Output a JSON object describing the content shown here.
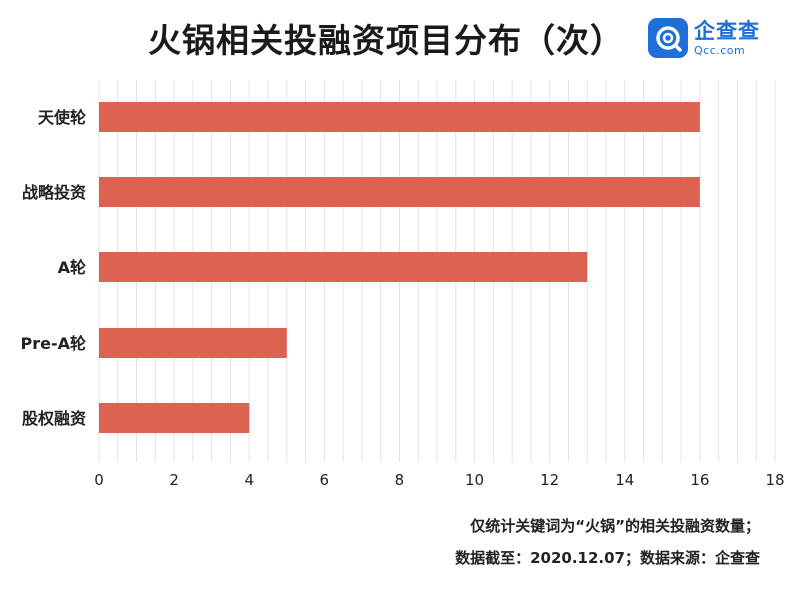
{
  "header": {
    "title": "火锅相关投融资项目分布（次）"
  },
  "logo": {
    "name": "企查查",
    "domain": "Qcc.com",
    "color": "#1e6fd9"
  },
  "chart_data": {
    "type": "bar",
    "orientation": "horizontal",
    "title": "火锅相关投融资项目分布（次）",
    "categories": [
      "天使轮",
      "战略投资",
      "A轮",
      "Pre-A轮",
      "股权融资"
    ],
    "values": [
      16,
      16,
      13,
      5,
      4
    ],
    "xticks": [
      "0",
      "2",
      "4",
      "6",
      "8",
      "10",
      "12",
      "14",
      "16",
      "18"
    ],
    "xlim": [
      0,
      18
    ],
    "grid": "vertical",
    "bar_color": "#de6252"
  },
  "footnotes": {
    "line1": "仅统计关键词为“火锅”的相关投融资数量；",
    "line2": "数据截至：2020.12.07；数据来源：企查查"
  }
}
